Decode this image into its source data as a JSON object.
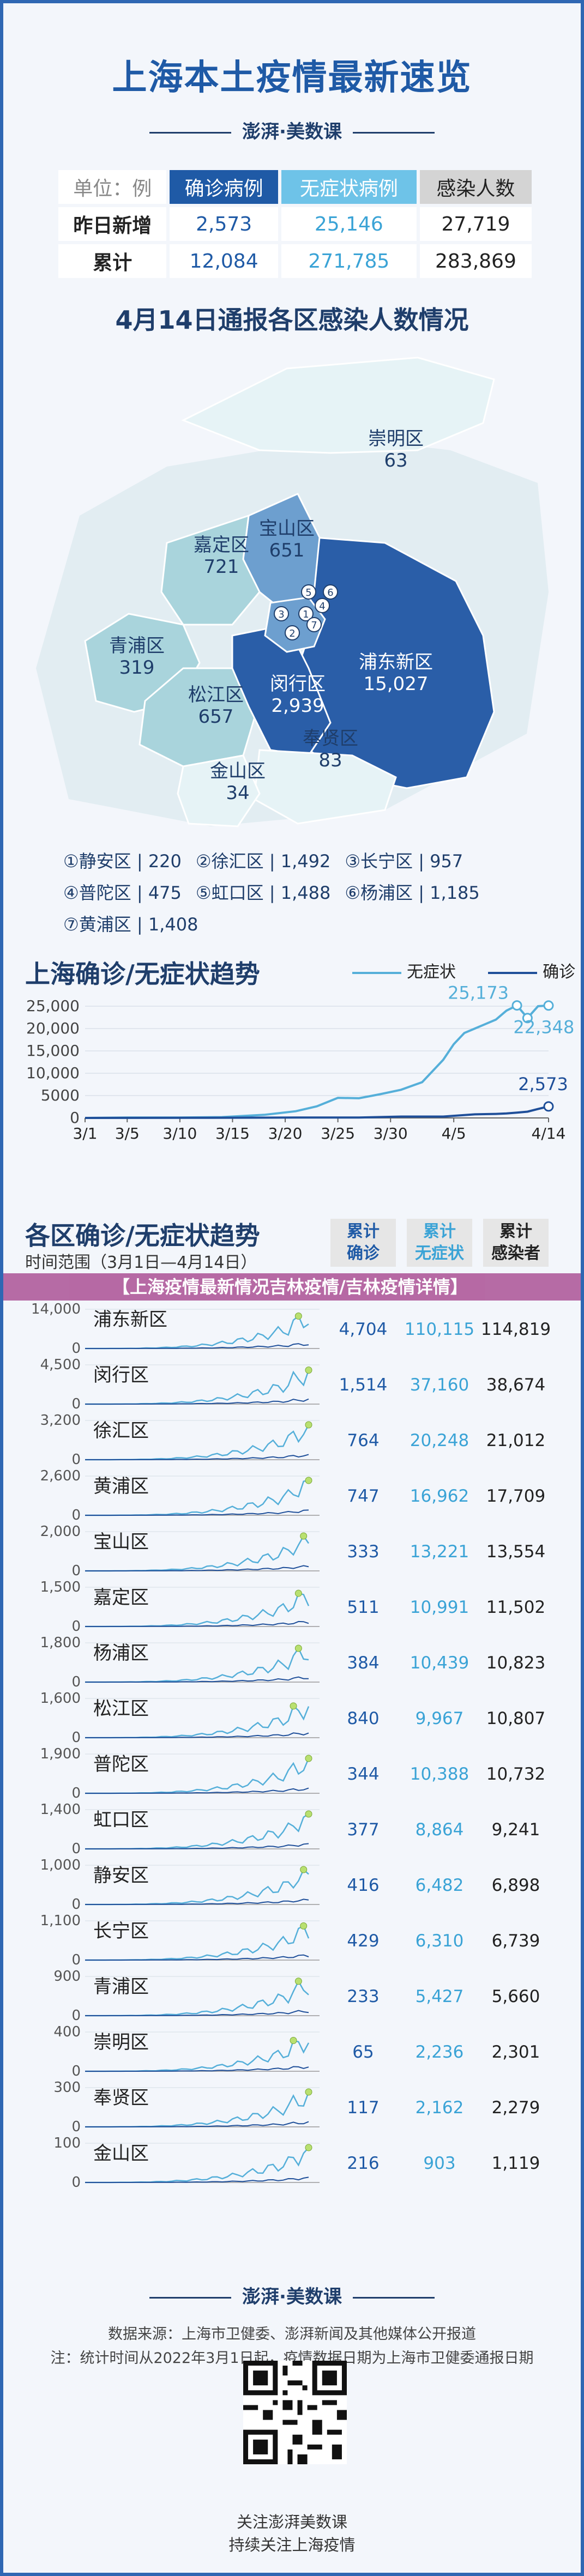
{
  "header": {
    "title": "上海本土疫情最新速览",
    "brand": "澎湃·美数课"
  },
  "summary": {
    "unit_label": "单位：例",
    "columns": [
      "确诊病例",
      "无症状病例",
      "感染人数"
    ],
    "rows": [
      {
        "label": "昨日新增",
        "values": [
          "2,573",
          "25,146",
          "27,719"
        ]
      },
      {
        "label": "累计",
        "values": [
          "12,084",
          "271,785",
          "283,869"
        ]
      }
    ]
  },
  "map": {
    "title": "4月14日通报各区感染人数情况",
    "regions": [
      {
        "name": "崇明区",
        "value": "63"
      },
      {
        "name": "嘉定区",
        "value": "721"
      },
      {
        "name": "宝山区",
        "value": "651"
      },
      {
        "name": "青浦区",
        "value": "319"
      },
      {
        "name": "松江区",
        "value": "657"
      },
      {
        "name": "闵行区",
        "value": "2,939"
      },
      {
        "name": "浦东新区",
        "value": "15,027"
      },
      {
        "name": "奉贤区",
        "value": "83"
      },
      {
        "name": "金山区",
        "value": "34"
      }
    ],
    "markers": [
      "1",
      "2",
      "3",
      "4",
      "5",
      "6",
      "7"
    ],
    "legend": [
      {
        "num": "①",
        "name": "静安区",
        "value": "220"
      },
      {
        "num": "②",
        "name": "徐汇区",
        "value": "1,492"
      },
      {
        "num": "③",
        "name": "长宁区",
        "value": "957"
      },
      {
        "num": "④",
        "name": "普陀区",
        "value": "475"
      },
      {
        "num": "⑤",
        "name": "虹口区",
        "value": "1,488"
      },
      {
        "num": "⑥",
        "name": "杨浦区",
        "value": "1,185"
      },
      {
        "num": "⑦",
        "name": "黄浦区",
        "value": "1,408"
      }
    ],
    "colors": {
      "dark": "#2a5ea8",
      "mid": "#6d9fcf",
      "light": "#a9d4dc",
      "pale": "#e6f3f6"
    }
  },
  "trend": {
    "title": "上海确诊/无症状趋势",
    "legend_asym": "无症状",
    "legend_conf": "确诊",
    "colors": {
      "asym": "#55afd9",
      "conf": "#1f4f99"
    }
  },
  "districts": {
    "title": "各区确诊/无症状趋势",
    "range": "时间范围（3月1日—4月14日）",
    "col_conf": [
      "累计",
      "确诊"
    ],
    "col_asym": [
      "累计",
      "无症状"
    ],
    "col_total": [
      "累计",
      "感染者"
    ],
    "banner": "【上海疫情最新情况吉林疫情/吉林疫情详情】",
    "rows": [
      {
        "name": "浦东新区",
        "ymax": "14,000",
        "conf": "4,704",
        "asym": "110,115",
        "total": "114,819"
      },
      {
        "name": "闵行区",
        "ymax": "4,500",
        "conf": "1,514",
        "asym": "37,160",
        "total": "38,674"
      },
      {
        "name": "徐汇区",
        "ymax": "3,200",
        "conf": "764",
        "asym": "20,248",
        "total": "21,012"
      },
      {
        "name": "黄浦区",
        "ymax": "2,600",
        "conf": "747",
        "asym": "16,962",
        "total": "17,709"
      },
      {
        "name": "宝山区",
        "ymax": "2,000",
        "conf": "333",
        "asym": "13,221",
        "total": "13,554"
      },
      {
        "name": "嘉定区",
        "ymax": "1,500",
        "conf": "511",
        "asym": "10,991",
        "total": "11,502"
      },
      {
        "name": "杨浦区",
        "ymax": "1,800",
        "conf": "384",
        "asym": "10,439",
        "total": "10,823"
      },
      {
        "name": "松江区",
        "ymax": "1,600",
        "conf": "840",
        "asym": "9,967",
        "total": "10,807"
      },
      {
        "name": "普陀区",
        "ymax": "1,900",
        "conf": "344",
        "asym": "10,388",
        "total": "10,732"
      },
      {
        "name": "虹口区",
        "ymax": "1,400",
        "conf": "377",
        "asym": "8,864",
        "total": "9,241"
      },
      {
        "name": "静安区",
        "ymax": "1,000",
        "conf": "416",
        "asym": "6,482",
        "total": "6,898"
      },
      {
        "name": "长宁区",
        "ymax": "1,100",
        "conf": "429",
        "asym": "6,310",
        "total": "6,739"
      },
      {
        "name": "青浦区",
        "ymax": "900",
        "conf": "233",
        "asym": "5,427",
        "total": "5,660"
      },
      {
        "name": "崇明区",
        "ymax": "400",
        "conf": "65",
        "asym": "2,236",
        "total": "2,301"
      },
      {
        "name": "奉贤区",
        "ymax": "300",
        "conf": "117",
        "asym": "2,162",
        "total": "2,279"
      },
      {
        "name": "金山区",
        "ymax": "100",
        "conf": "216",
        "asym": "903",
        "total": "1,119"
      }
    ]
  },
  "footer": {
    "brand": "澎湃·美数课",
    "source": "数据来源：上海市卫健委、澎湃新闻及其他媒体公开报道",
    "note": "注：统计时间从2022年3月1日起，疫情数据日期为上海市卫健委通报日期",
    "qr_line1": "关注澎湃美数课",
    "qr_line2": "持续关注上海疫情"
  },
  "chart_data": {
    "type": "line",
    "title": "上海确诊/无症状趋势",
    "categories": [
      "3/1",
      "3/5",
      "3/10",
      "3/15",
      "3/20",
      "3/25",
      "3/30",
      "4/5",
      "4/14"
    ],
    "ylim": [
      0,
      25000
    ],
    "yticks": [
      "0",
      "5000",
      "10,000",
      "15,000",
      "20,000",
      "25,000"
    ],
    "series": [
      {
        "name": "无症状",
        "x": [
          0,
          4,
          9,
          13,
          17,
          20,
          22,
          24,
          26,
          28,
          30,
          32,
          34,
          35,
          36,
          37,
          38,
          39,
          40,
          41,
          42,
          43,
          44
        ],
        "values": [
          1,
          100,
          80,
          180,
          700,
          1500,
          2600,
          4500,
          4400,
          5300,
          6300,
          8000,
          13000,
          16500,
          19000,
          20000,
          21000,
          22000,
          24000,
          25173,
          22348,
          25000,
          25146
        ]
      },
      {
        "name": "确诊",
        "x": [
          0,
          10,
          20,
          26,
          30,
          34,
          37,
          39,
          40,
          41,
          42,
          43,
          44
        ],
        "values": [
          0,
          20,
          80,
          100,
          300,
          300,
          800,
          900,
          1000,
          1200,
          1400,
          2000,
          2573
        ]
      }
    ],
    "annotations": [
      "25,173",
      "25,146",
      "22,348",
      "2,573"
    ]
  }
}
